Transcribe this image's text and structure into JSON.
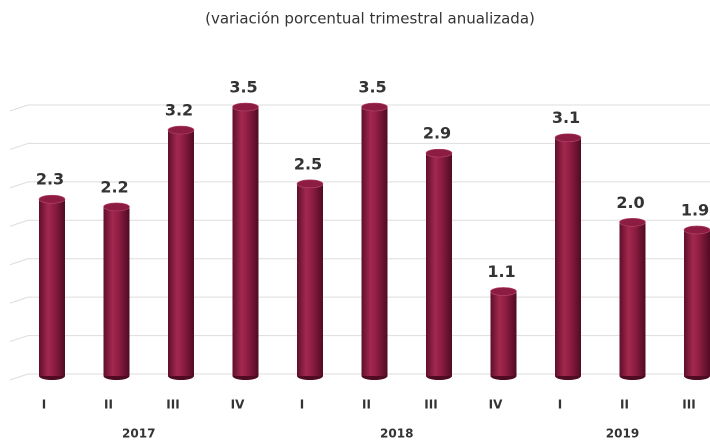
{
  "chart_data": {
    "type": "bar",
    "subtitle": "(variación porcentual trimestral anualizada)",
    "categories": [
      "I",
      "II",
      "III",
      "IV",
      "I",
      "II",
      "III",
      "IV",
      "I",
      "II",
      "III"
    ],
    "groups": [
      {
        "label": "2017",
        "size": 4
      },
      {
        "label": "2018",
        "size": 4
      },
      {
        "label": "2019",
        "size": 3
      }
    ],
    "values": [
      2.3,
      2.2,
      3.2,
      3.5,
      2.5,
      3.5,
      2.9,
      1.1,
      3.1,
      2.0,
      1.9
    ],
    "value_labels": [
      "2.3",
      "2.2",
      "3.2",
      "3.5",
      "2.5",
      "3.5",
      "2.9",
      "1.1",
      "3.1",
      "2.0",
      "1.9"
    ],
    "color": "#8c1c42",
    "ylim": [
      0,
      3.5
    ],
    "yticks": [
      0,
      0.5,
      1,
      1.5,
      2,
      2.5,
      3,
      3.5
    ],
    "grid": true
  }
}
